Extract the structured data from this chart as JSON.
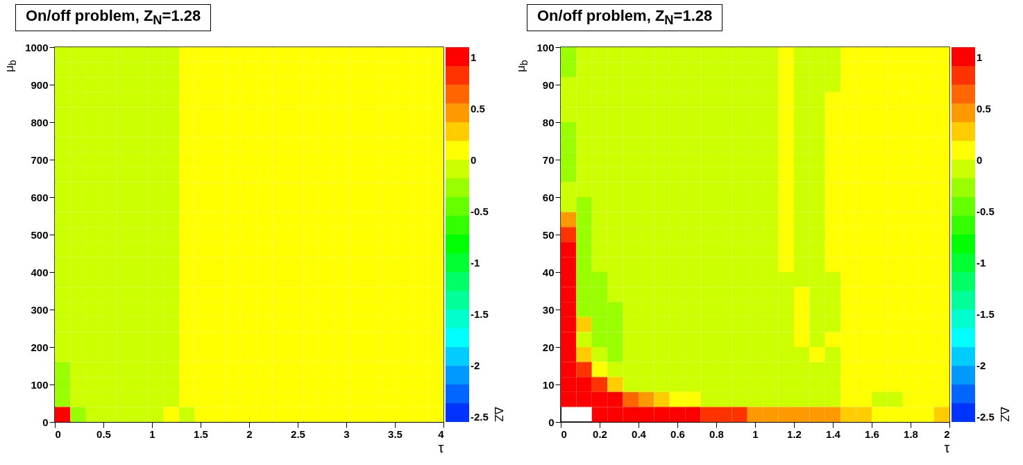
{
  "chart_data": [
    {
      "type": "heatmap",
      "title": "On/off problem, Z$_{N}$=1.28",
      "xlabel": "τ",
      "ylabel": "μ$_{b}$",
      "clabel": "ΔZ",
      "x": [
        0.08,
        0.24,
        0.4,
        0.56,
        0.72,
        0.88,
        1.04,
        1.2,
        1.36,
        1.52,
        1.68,
        1.84,
        2,
        2.16,
        2.32,
        2.48,
        2.64,
        2.8,
        2.96,
        3.12,
        3.28,
        3.44,
        3.6,
        3.76,
        3.92
      ],
      "y": [
        980,
        940,
        900,
        860,
        820,
        780,
        740,
        700,
        660,
        620,
        580,
        540,
        500,
        460,
        420,
        380,
        340,
        300,
        260,
        220,
        180,
        140,
        100,
        60,
        20
      ],
      "xlim": [
        0,
        4
      ],
      "xticks": [
        0,
        0.5,
        1,
        1.5,
        2,
        2.5,
        3,
        3.5,
        4
      ],
      "ylim": [
        0,
        1000
      ],
      "yticks": [
        0,
        100,
        200,
        300,
        400,
        500,
        600,
        700,
        800,
        900,
        1000
      ],
      "clim": [
        -2.55,
        1.1
      ],
      "cticks": [
        -2.5,
        -2,
        -1.5,
        -1,
        -0.5,
        0,
        0.5,
        1
      ],
      "cells": [
        [
          -0.1,
          -0.1,
          -0.1,
          -0.1,
          -0.1,
          -0.1,
          -0.1,
          -0.1,
          0.1,
          0.1,
          0.1,
          0.1,
          0.1,
          0.1,
          0.1,
          0.1,
          0.1,
          0.1,
          0.1,
          0.1,
          0.1,
          0.1,
          0.1,
          0.1,
          0.1
        ],
        [
          -0.1,
          -0.1,
          -0.1,
          -0.1,
          -0.1,
          -0.1,
          -0.1,
          -0.1,
          0.1,
          0.1,
          0.1,
          0.1,
          0.1,
          0.1,
          0.1,
          0.1,
          0.1,
          0.1,
          0.1,
          0.1,
          0.1,
          0.1,
          0.1,
          0.1,
          0.1
        ],
        [
          -0.1,
          -0.1,
          -0.1,
          -0.1,
          -0.1,
          -0.1,
          -0.1,
          -0.1,
          0.1,
          0.1,
          0.1,
          0.1,
          0.1,
          0.1,
          0.1,
          0.1,
          0.1,
          0.1,
          0.1,
          0.1,
          0.1,
          0.1,
          0.1,
          0.1,
          0.1
        ],
        [
          -0.1,
          -0.1,
          -0.1,
          -0.1,
          -0.1,
          -0.1,
          -0.1,
          -0.1,
          0.1,
          0.1,
          0.1,
          0.1,
          0.1,
          0.1,
          0.1,
          0.1,
          0.1,
          0.1,
          0.1,
          0.1,
          0.1,
          0.1,
          0.1,
          0.1,
          0.1
        ],
        [
          -0.1,
          -0.1,
          -0.1,
          -0.1,
          -0.1,
          -0.1,
          -0.1,
          -0.1,
          0.1,
          0.1,
          0.1,
          0.1,
          0.1,
          0.1,
          0.1,
          0.1,
          0.1,
          0.1,
          0.1,
          0.1,
          0.1,
          0.1,
          0.1,
          0.1,
          0.1
        ],
        [
          -0.1,
          -0.1,
          -0.1,
          -0.1,
          -0.1,
          -0.1,
          -0.1,
          -0.1,
          0.1,
          0.1,
          0.1,
          0.1,
          0.1,
          0.1,
          0.1,
          0.1,
          0.1,
          0.1,
          0.1,
          0.1,
          0.1,
          0.1,
          0.1,
          0.1,
          0.1
        ],
        [
          -0.1,
          -0.1,
          -0.1,
          -0.1,
          -0.1,
          -0.1,
          -0.1,
          -0.1,
          0.1,
          0.1,
          0.1,
          0.1,
          0.1,
          0.1,
          0.1,
          0.1,
          0.1,
          0.1,
          0.1,
          0.1,
          0.1,
          0.1,
          0.1,
          0.1,
          0.1
        ],
        [
          -0.1,
          -0.1,
          -0.1,
          -0.1,
          -0.1,
          -0.1,
          -0.1,
          -0.1,
          0.1,
          0.1,
          0.1,
          0.1,
          0.1,
          0.1,
          0.1,
          0.1,
          0.1,
          0.1,
          0.1,
          0.1,
          0.1,
          0.1,
          0.1,
          0.1,
          0.1
        ],
        [
          -0.1,
          -0.1,
          -0.1,
          -0.1,
          -0.1,
          -0.1,
          -0.1,
          -0.1,
          0.1,
          0.1,
          0.1,
          0.1,
          0.1,
          0.1,
          0.1,
          0.1,
          0.1,
          0.1,
          0.1,
          0.1,
          0.1,
          0.1,
          0.1,
          0.1,
          0.1
        ],
        [
          -0.1,
          -0.1,
          -0.1,
          -0.1,
          -0.1,
          -0.1,
          -0.1,
          -0.1,
          0.1,
          0.1,
          0.1,
          0.1,
          0.1,
          0.1,
          0.1,
          0.1,
          0.1,
          0.1,
          0.1,
          0.1,
          0.1,
          0.1,
          0.1,
          0.1,
          0.1
        ],
        [
          -0.1,
          -0.1,
          -0.1,
          -0.1,
          -0.1,
          -0.1,
          -0.1,
          -0.1,
          0.1,
          0.1,
          0.1,
          0.1,
          0.1,
          0.1,
          0.1,
          0.1,
          0.1,
          0.1,
          0.1,
          0.1,
          0.1,
          0.1,
          0.1,
          0.1,
          0.1
        ],
        [
          -0.1,
          -0.1,
          -0.1,
          -0.1,
          -0.1,
          -0.1,
          -0.1,
          -0.1,
          0.1,
          0.1,
          0.1,
          0.1,
          0.1,
          0.1,
          0.1,
          0.1,
          0.1,
          0.1,
          0.1,
          0.1,
          0.1,
          0.1,
          0.1,
          0.1,
          0.1
        ],
        [
          -0.1,
          -0.1,
          -0.1,
          -0.1,
          -0.1,
          -0.1,
          -0.1,
          -0.1,
          0.1,
          0.1,
          0.1,
          0.1,
          0.1,
          0.1,
          0.1,
          0.1,
          0.1,
          0.1,
          0.1,
          0.1,
          0.1,
          0.1,
          0.1,
          0.1,
          0.1
        ],
        [
          -0.1,
          -0.1,
          -0.1,
          -0.1,
          -0.1,
          -0.1,
          -0.1,
          -0.1,
          0.1,
          0.1,
          0.1,
          0.1,
          0.1,
          0.1,
          0.1,
          0.1,
          0.1,
          0.1,
          0.1,
          0.1,
          0.1,
          0.1,
          0.1,
          0.1,
          0.1
        ],
        [
          -0.1,
          -0.1,
          -0.1,
          -0.1,
          -0.1,
          -0.1,
          -0.1,
          -0.1,
          0.1,
          0.1,
          0.1,
          0.1,
          0.1,
          0.1,
          0.1,
          0.1,
          0.1,
          0.1,
          0.1,
          0.1,
          0.1,
          0.1,
          0.1,
          0.1,
          0.1
        ],
        [
          -0.1,
          -0.1,
          -0.1,
          -0.1,
          -0.1,
          -0.1,
          -0.1,
          -0.1,
          0.1,
          0.1,
          0.1,
          0.1,
          0.1,
          0.1,
          0.1,
          0.1,
          0.1,
          0.1,
          0.1,
          0.1,
          0.1,
          0.1,
          0.1,
          0.1,
          0.1
        ],
        [
          -0.1,
          -0.1,
          -0.1,
          -0.1,
          -0.1,
          -0.1,
          -0.1,
          -0.1,
          0.1,
          0.1,
          0.1,
          0.1,
          0.1,
          0.1,
          0.1,
          0.1,
          0.1,
          0.1,
          0.1,
          0.1,
          0.1,
          0.1,
          0.1,
          0.1,
          0.1
        ],
        [
          -0.1,
          -0.1,
          -0.1,
          -0.1,
          -0.1,
          -0.1,
          -0.1,
          -0.1,
          0.1,
          0.1,
          0.1,
          0.1,
          0.1,
          0.1,
          0.1,
          0.1,
          0.1,
          0.1,
          0.1,
          0.1,
          0.1,
          0.1,
          0.1,
          0.1,
          0.1
        ],
        [
          -0.1,
          -0.1,
          -0.1,
          -0.1,
          -0.1,
          -0.1,
          -0.1,
          -0.1,
          0.1,
          0.1,
          0.1,
          0.1,
          0.1,
          0.1,
          0.1,
          0.1,
          0.1,
          0.1,
          0.1,
          0.1,
          0.1,
          0.1,
          0.1,
          0.1,
          0.1
        ],
        [
          -0.1,
          -0.1,
          -0.1,
          -0.1,
          -0.1,
          -0.1,
          -0.1,
          -0.1,
          0.1,
          0.1,
          0.1,
          0.1,
          0.1,
          0.1,
          0.1,
          0.1,
          0.1,
          0.1,
          0.1,
          0.1,
          0.1,
          0.1,
          0.1,
          0.1,
          0.1
        ],
        [
          -0.1,
          -0.1,
          -0.1,
          -0.1,
          -0.1,
          -0.1,
          -0.1,
          -0.1,
          0.1,
          0.1,
          0.1,
          0.1,
          0.1,
          0.1,
          0.1,
          0.1,
          0.1,
          0.1,
          0.1,
          0.1,
          0.1,
          0.1,
          0.1,
          0.1,
          0.1
        ],
        [
          -0.3,
          -0.1,
          -0.1,
          -0.1,
          -0.1,
          -0.1,
          -0.1,
          -0.1,
          0.1,
          0.1,
          0.1,
          0.1,
          0.1,
          0.1,
          0.1,
          0.1,
          0.1,
          0.1,
          0.1,
          0.1,
          0.1,
          0.1,
          0.1,
          0.1,
          0.1
        ],
        [
          -0.3,
          -0.1,
          -0.1,
          -0.1,
          -0.1,
          -0.1,
          -0.1,
          -0.1,
          0.1,
          0.1,
          0.1,
          0.1,
          0.1,
          0.1,
          0.1,
          0.1,
          0.1,
          0.1,
          0.1,
          0.1,
          0.1,
          0.1,
          0.1,
          0.1,
          0.1
        ],
        [
          -0.3,
          -0.1,
          -0.1,
          -0.1,
          -0.1,
          -0.1,
          -0.1,
          -0.1,
          0.1,
          0.1,
          0.1,
          0.1,
          0.1,
          0.1,
          0.1,
          0.1,
          0.1,
          0.1,
          0.1,
          0.1,
          0.1,
          0.1,
          0.1,
          0.1,
          0.1
        ],
        [
          1.05,
          -0.3,
          -0.1,
          -0.1,
          -0.1,
          -0.1,
          -0.1,
          0.1,
          -0.1,
          0.1,
          0.1,
          0.1,
          0.1,
          0.1,
          0.1,
          0.1,
          0.1,
          0.1,
          0.1,
          0.1,
          0.1,
          0.1,
          0.1,
          0.1,
          0.1
        ]
      ]
    },
    {
      "type": "heatmap",
      "title": "On/off problem, Z$_{N}$=1.28",
      "xlabel": "τ",
      "ylabel": "μ$_{b}$",
      "clabel": "ΔZ",
      "x": [
        0.04,
        0.12,
        0.2,
        0.28,
        0.36,
        0.44,
        0.52,
        0.6,
        0.68,
        0.76,
        0.84,
        0.92,
        1,
        1.08,
        1.16,
        1.24,
        1.32,
        1.4,
        1.48,
        1.56,
        1.64,
        1.72,
        1.8,
        1.88,
        1.96
      ],
      "y": [
        98,
        94,
        90,
        86,
        82,
        78,
        74,
        70,
        66,
        62,
        58,
        54,
        50,
        46,
        42,
        38,
        34,
        30,
        26,
        22,
        18,
        14,
        10,
        6,
        2
      ],
      "xlim": [
        0,
        2
      ],
      "xticks": [
        0,
        0.2,
        0.4,
        0.6,
        0.8,
        1,
        1.2,
        1.4,
        1.6,
        1.8,
        2
      ],
      "ylim": [
        0,
        100
      ],
      "yticks": [
        0,
        10,
        20,
        30,
        40,
        50,
        60,
        70,
        80,
        90,
        100
      ],
      "clim": [
        -2.55,
        1.1
      ],
      "cticks": [
        -2.5,
        -2,
        -1.5,
        -1,
        -0.5,
        0,
        0.5,
        1
      ],
      "cells": [
        [
          -0.3,
          -0.1,
          -0.1,
          -0.1,
          -0.1,
          -0.1,
          -0.1,
          -0.1,
          -0.1,
          -0.1,
          -0.1,
          -0.1,
          -0.1,
          -0.1,
          0.1,
          -0.1,
          -0.1,
          -0.1,
          0.1,
          0.1,
          0.1,
          0.1,
          0.1,
          0.1,
          0.1
        ],
        [
          -0.3,
          -0.1,
          -0.1,
          -0.1,
          -0.1,
          -0.1,
          -0.1,
          -0.1,
          -0.1,
          -0.1,
          -0.1,
          -0.1,
          -0.1,
          -0.1,
          0.1,
          -0.1,
          -0.1,
          -0.1,
          0.1,
          0.1,
          0.1,
          0.1,
          0.1,
          0.1,
          0.1
        ],
        [
          -0.1,
          -0.1,
          -0.1,
          -0.1,
          -0.1,
          -0.1,
          -0.1,
          -0.1,
          -0.1,
          -0.1,
          -0.1,
          -0.1,
          -0.1,
          -0.1,
          0.1,
          -0.1,
          -0.1,
          -0.1,
          0.1,
          0.1,
          0.1,
          0.1,
          0.1,
          0.1,
          0.1
        ],
        [
          -0.1,
          -0.1,
          -0.1,
          -0.1,
          -0.1,
          -0.1,
          -0.1,
          -0.1,
          -0.1,
          -0.1,
          -0.1,
          -0.1,
          -0.1,
          -0.1,
          0.1,
          -0.1,
          -0.1,
          0.1,
          0.1,
          0.1,
          0.1,
          0.1,
          0.1,
          0.1,
          0.1
        ],
        [
          -0.1,
          -0.1,
          -0.1,
          -0.1,
          -0.1,
          -0.1,
          -0.1,
          -0.1,
          -0.1,
          -0.1,
          -0.1,
          -0.1,
          -0.1,
          -0.1,
          0.1,
          -0.1,
          -0.1,
          0.1,
          0.1,
          0.1,
          0.1,
          0.1,
          0.1,
          0.1,
          0.1
        ],
        [
          -0.3,
          -0.1,
          -0.1,
          -0.1,
          -0.1,
          -0.1,
          -0.1,
          -0.1,
          -0.1,
          -0.1,
          -0.1,
          -0.1,
          -0.1,
          -0.1,
          0.1,
          -0.1,
          -0.1,
          0.1,
          0.1,
          0.1,
          0.1,
          0.1,
          0.1,
          0.1,
          0.1
        ],
        [
          -0.3,
          -0.1,
          -0.1,
          -0.1,
          -0.1,
          -0.1,
          -0.1,
          -0.1,
          -0.1,
          -0.1,
          -0.1,
          -0.1,
          -0.1,
          -0.1,
          0.1,
          -0.1,
          -0.1,
          0.1,
          0.1,
          0.1,
          0.1,
          0.1,
          0.1,
          0.1,
          0.1
        ],
        [
          -0.3,
          -0.1,
          -0.1,
          -0.1,
          -0.1,
          -0.1,
          -0.1,
          -0.1,
          -0.1,
          -0.1,
          -0.1,
          -0.1,
          -0.1,
          -0.1,
          0.1,
          -0.1,
          -0.1,
          0.1,
          0.1,
          0.1,
          0.1,
          0.1,
          0.1,
          0.1,
          0.1
        ],
        [
          -0.3,
          -0.1,
          -0.1,
          -0.1,
          -0.1,
          -0.1,
          -0.1,
          -0.1,
          -0.1,
          -0.1,
          -0.1,
          -0.1,
          -0.1,
          -0.1,
          0.1,
          -0.1,
          -0.1,
          0.1,
          0.1,
          0.1,
          0.1,
          0.1,
          0.1,
          0.1,
          0.1
        ],
        [
          -0.1,
          -0.1,
          -0.1,
          -0.1,
          -0.1,
          -0.1,
          -0.1,
          -0.1,
          -0.1,
          -0.1,
          -0.1,
          -0.1,
          -0.1,
          -0.1,
          0.1,
          -0.1,
          -0.1,
          0.1,
          0.1,
          0.1,
          0.1,
          0.1,
          0.1,
          0.1,
          0.1
        ],
        [
          -0.1,
          -0.3,
          -0.1,
          -0.1,
          -0.1,
          -0.1,
          -0.1,
          -0.1,
          -0.1,
          -0.1,
          -0.1,
          -0.1,
          -0.1,
          -0.1,
          0.1,
          -0.1,
          -0.1,
          0.1,
          0.1,
          0.1,
          0.1,
          0.1,
          0.1,
          0.1,
          0.1
        ],
        [
          0.45,
          -0.3,
          -0.1,
          -0.1,
          -0.1,
          -0.1,
          -0.1,
          -0.1,
          -0.1,
          -0.1,
          -0.1,
          -0.1,
          -0.1,
          -0.1,
          0.1,
          -0.1,
          -0.1,
          0.1,
          0.1,
          0.1,
          0.1,
          0.1,
          0.1,
          0.1,
          0.1
        ],
        [
          0.85,
          -0.3,
          -0.1,
          -0.1,
          -0.1,
          -0.1,
          -0.1,
          -0.1,
          -0.1,
          -0.1,
          -0.1,
          -0.1,
          -0.1,
          -0.1,
          0.1,
          -0.1,
          -0.1,
          0.1,
          0.1,
          0.1,
          0.1,
          0.1,
          0.1,
          0.1,
          0.1
        ],
        [
          1.05,
          -0.3,
          -0.1,
          -0.1,
          -0.1,
          -0.1,
          -0.1,
          -0.1,
          -0.1,
          -0.1,
          -0.1,
          -0.1,
          -0.1,
          -0.1,
          0.1,
          -0.1,
          -0.1,
          0.1,
          0.1,
          0.1,
          0.1,
          0.1,
          0.1,
          0.1,
          0.1
        ],
        [
          1.05,
          -0.3,
          -0.1,
          -0.1,
          -0.1,
          -0.1,
          -0.1,
          -0.1,
          -0.1,
          -0.1,
          -0.1,
          -0.1,
          -0.1,
          -0.1,
          0.1,
          -0.1,
          -0.1,
          0.1,
          0.1,
          0.1,
          0.1,
          0.1,
          0.1,
          0.1,
          0.1
        ],
        [
          1.05,
          -0.3,
          -0.3,
          -0.1,
          -0.1,
          -0.1,
          -0.1,
          -0.1,
          -0.1,
          -0.1,
          -0.1,
          -0.1,
          -0.1,
          -0.1,
          -0.1,
          -0.1,
          -0.1,
          -0.1,
          0.1,
          0.1,
          0.1,
          0.1,
          0.1,
          0.1,
          0.1
        ],
        [
          1.05,
          -0.3,
          -0.3,
          -0.1,
          -0.1,
          -0.1,
          -0.1,
          -0.1,
          -0.1,
          -0.1,
          -0.1,
          -0.1,
          -0.1,
          -0.1,
          -0.1,
          0.1,
          -0.1,
          -0.1,
          0.1,
          0.1,
          0.1,
          0.1,
          0.1,
          0.1,
          0.1
        ],
        [
          1.05,
          -0.3,
          -0.3,
          -0.3,
          -0.1,
          -0.1,
          -0.1,
          -0.1,
          -0.1,
          -0.1,
          -0.1,
          -0.1,
          -0.1,
          -0.1,
          -0.1,
          0.1,
          -0.1,
          -0.1,
          0.1,
          0.1,
          0.1,
          0.1,
          0.1,
          0.1,
          0.1
        ],
        [
          1.05,
          0.3,
          -0.3,
          -0.3,
          -0.1,
          -0.1,
          -0.1,
          -0.1,
          -0.1,
          -0.1,
          -0.1,
          -0.1,
          -0.1,
          -0.1,
          -0.1,
          0.1,
          -0.1,
          -0.1,
          0.1,
          0.1,
          0.1,
          0.1,
          0.1,
          0.1,
          0.1
        ],
        [
          1.05,
          -0.1,
          -0.3,
          -0.3,
          -0.1,
          -0.1,
          -0.1,
          -0.1,
          -0.1,
          -0.1,
          -0.1,
          -0.1,
          -0.1,
          -0.1,
          -0.1,
          0.1,
          -0.1,
          0.1,
          0.1,
          0.1,
          0.1,
          0.1,
          0.1,
          0.1,
          0.1
        ],
        [
          1.05,
          0.3,
          -0.1,
          -0.3,
          -0.1,
          -0.1,
          -0.1,
          -0.1,
          -0.1,
          -0.1,
          -0.1,
          -0.1,
          -0.1,
          -0.1,
          -0.1,
          -0.1,
          0.1,
          -0.1,
          0.1,
          0.1,
          0.1,
          0.1,
          0.1,
          0.1,
          0.1
        ],
        [
          1.05,
          0.85,
          0.1,
          -0.1,
          -0.1,
          -0.1,
          -0.1,
          -0.1,
          -0.1,
          -0.1,
          -0.1,
          -0.1,
          -0.1,
          -0.1,
          -0.1,
          -0.1,
          -0.1,
          -0.1,
          0.1,
          0.1,
          0.1,
          0.1,
          0.1,
          0.1,
          0.1
        ],
        [
          1.05,
          1.05,
          0.85,
          0.3,
          -0.1,
          -0.1,
          -0.1,
          -0.1,
          -0.1,
          -0.1,
          -0.1,
          -0.1,
          -0.1,
          -0.1,
          -0.1,
          -0.1,
          -0.1,
          -0.1,
          0.1,
          0.1,
          0.1,
          0.1,
          0.1,
          0.1,
          0.1
        ],
        [
          1.05,
          1.05,
          1.05,
          1.05,
          0.65,
          0.45,
          0.3,
          0.1,
          0.1,
          -0.1,
          -0.1,
          -0.1,
          -0.1,
          -0.1,
          -0.1,
          -0.1,
          -0.1,
          -0.1,
          0.1,
          0.1,
          -0.1,
          -0.1,
          0.1,
          0.1,
          0.1
        ],
        [
          null,
          null,
          1.05,
          1.05,
          1.05,
          1.05,
          1.05,
          1.05,
          1.05,
          0.85,
          0.85,
          0.85,
          0.45,
          0.45,
          0.45,
          0.45,
          0.45,
          0.45,
          0.3,
          0.3,
          0.1,
          0.1,
          0.1,
          0.1,
          0.3
        ]
      ]
    }
  ]
}
